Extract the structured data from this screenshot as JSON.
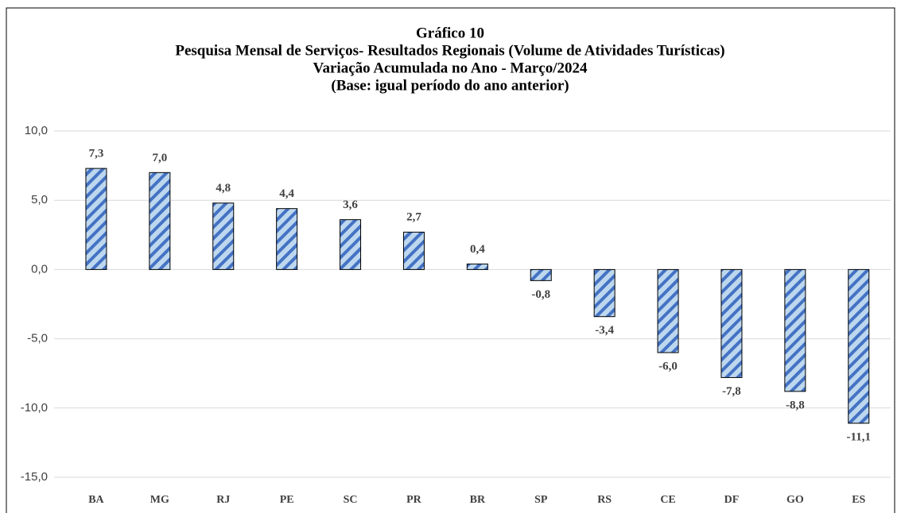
{
  "chart_data": {
    "type": "bar",
    "title": [
      "Gráfico 10",
      "Pesquisa Mensal de Serviços- Resultados Regionais (Volume de Atividades Turísticas)",
      "Variação Acumulada no Ano - Março/2024",
      "(Base: igual período do ano anterior)"
    ],
    "categories": [
      "BA",
      "MG",
      "RJ",
      "PE",
      "SC",
      "PR",
      "BR",
      "SP",
      "RS",
      "CE",
      "DF",
      "GO",
      "ES"
    ],
    "values": [
      7.3,
      7.0,
      4.8,
      4.4,
      3.6,
      2.7,
      0.4,
      -0.8,
      -3.4,
      -6.0,
      -7.8,
      -8.8,
      -11.1
    ],
    "value_labels": [
      "7,3",
      "7,0",
      "4,8",
      "4,4",
      "3,6",
      "2,7",
      "0,4",
      "-0,8",
      "-3,4",
      "-6,0",
      "-7,8",
      "-8,8",
      "-11,1"
    ],
    "color": "#4472c4",
    "ylim": [
      -15,
      10
    ],
    "yticks": [
      {
        "value": -15,
        "label": "-15,0"
      },
      {
        "value": -10,
        "label": "-10,0"
      },
      {
        "value": -5,
        "label": "-5,0"
      },
      {
        "value": 0,
        "label": "0,0"
      },
      {
        "value": 5,
        "label": "5,0"
      },
      {
        "value": 10,
        "label": "10,0"
      }
    ],
    "grid": true
  }
}
